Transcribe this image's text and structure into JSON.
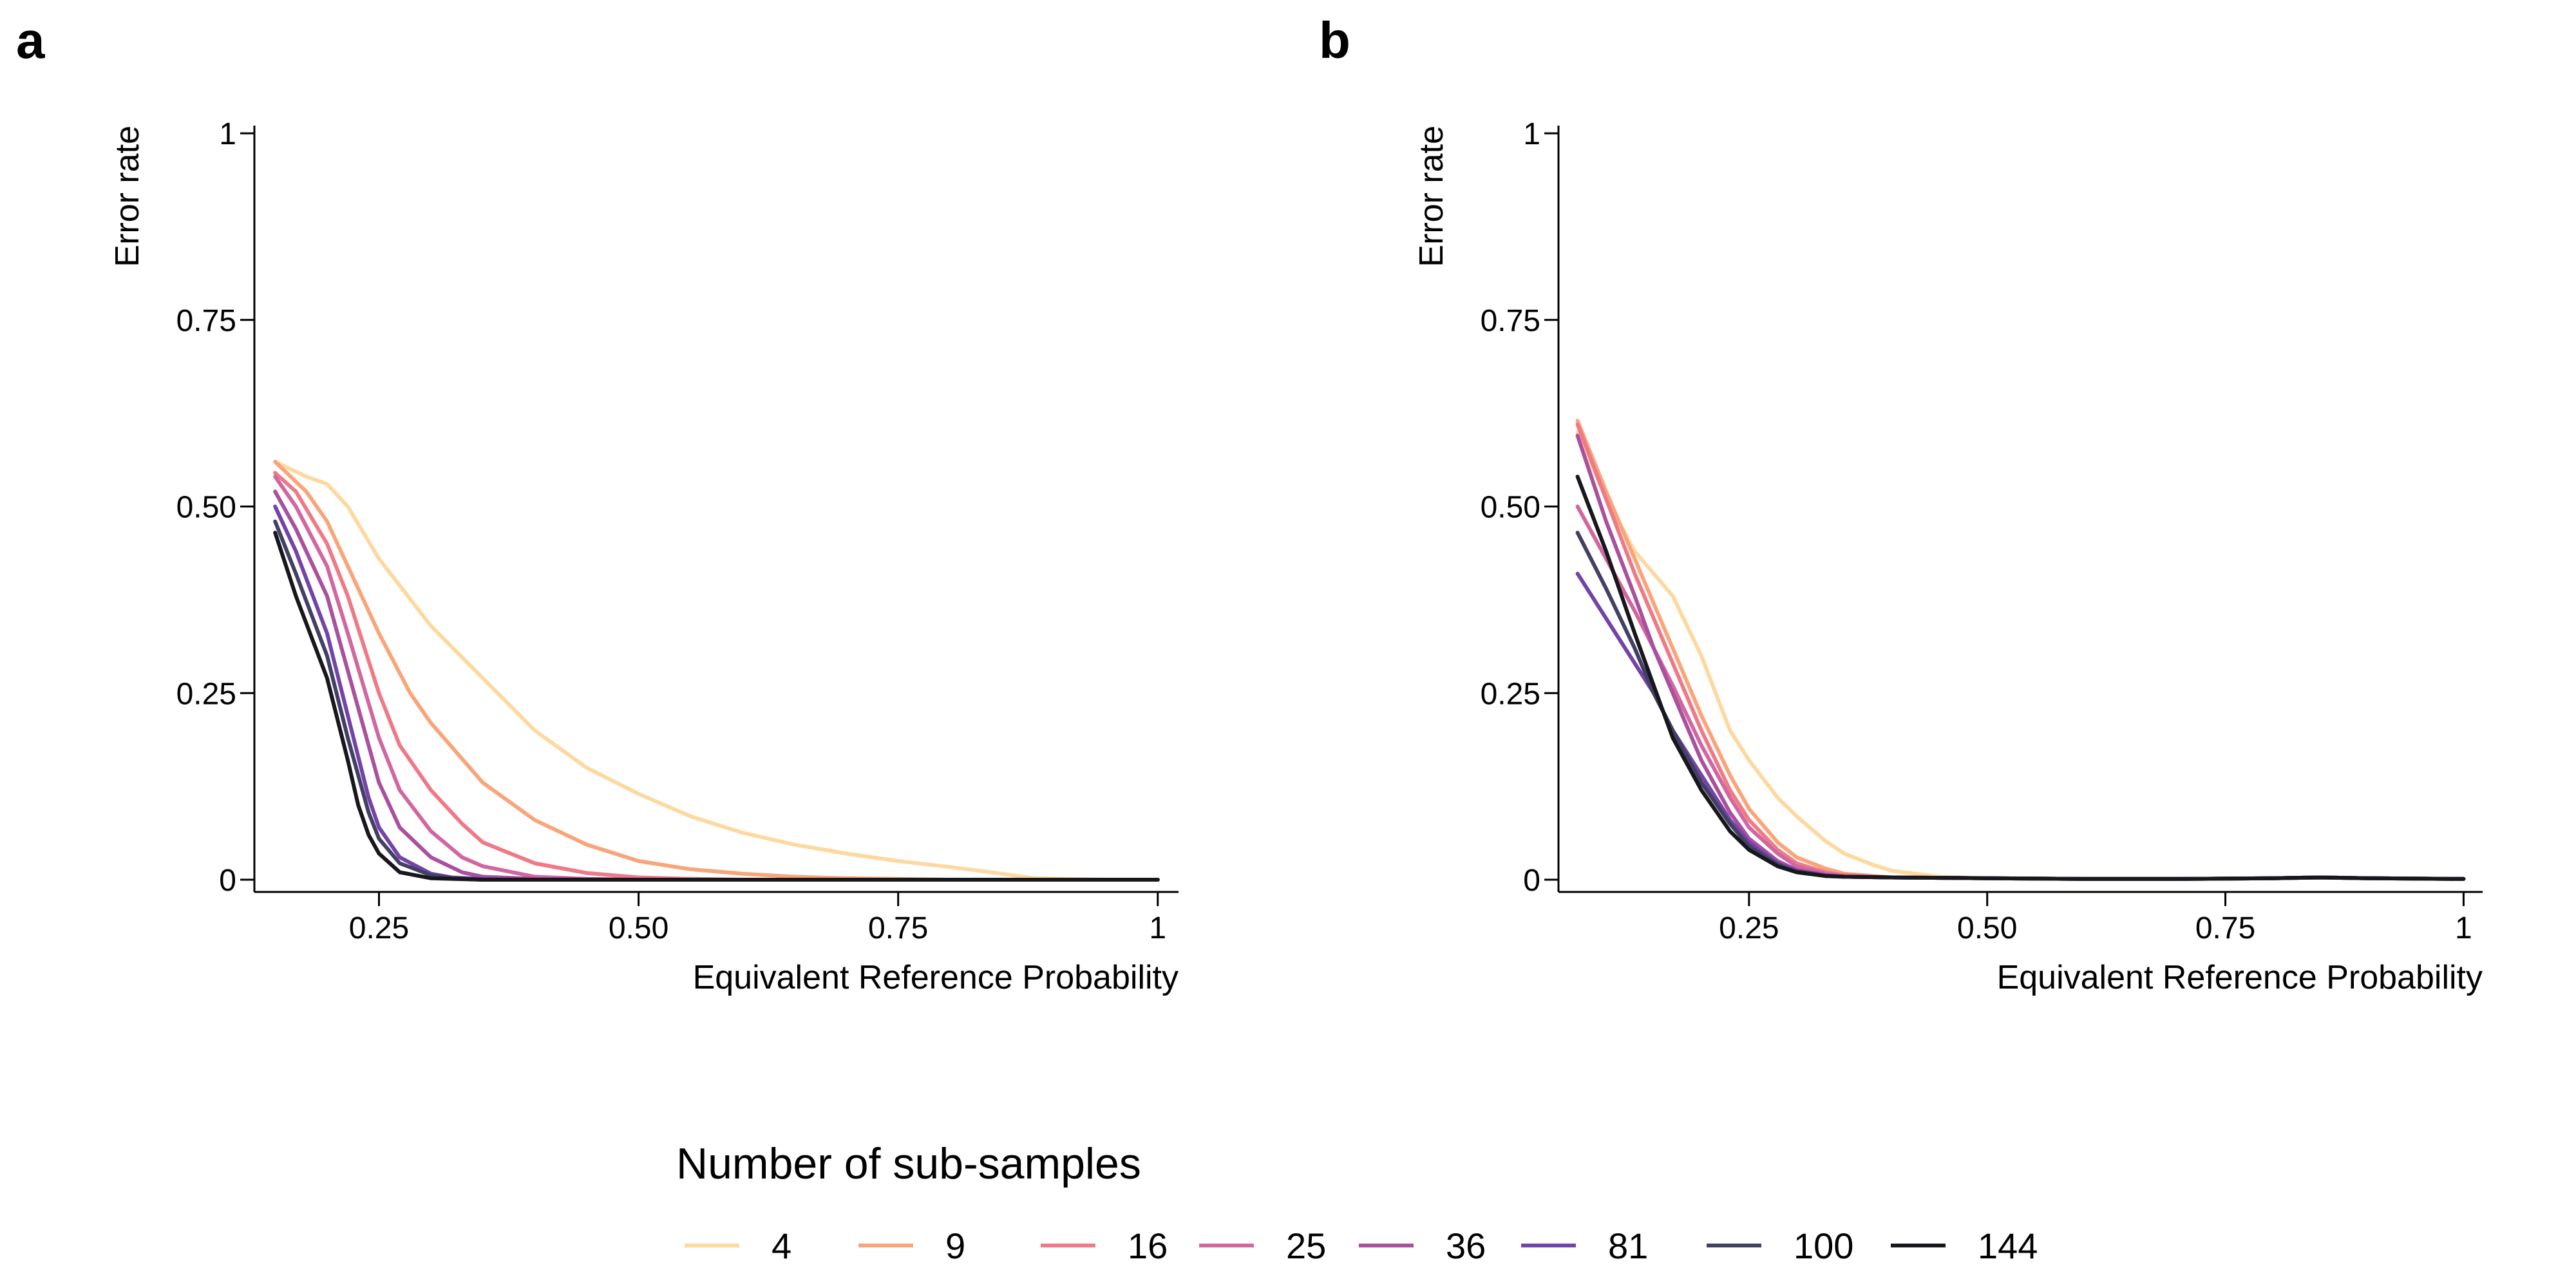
{
  "legend": {
    "title": "Number of sub-samples",
    "entries": [
      {
        "label": "4",
        "color": "#FDD9A0"
      },
      {
        "label": "9",
        "color": "#F9A57A"
      },
      {
        "label": "16",
        "color": "#EE7A87"
      },
      {
        "label": "25",
        "color": "#D267A0"
      },
      {
        "label": "36",
        "color": "#A9509E"
      },
      {
        "label": "81",
        "color": "#7443A8"
      },
      {
        "label": "100",
        "color": "#434065"
      },
      {
        "label": "144",
        "color": "#17171C"
      }
    ]
  },
  "chart_data": [
    {
      "panel": "a",
      "type": "line",
      "xlabel": "Equivalent Reference Probability",
      "ylabel": "Error rate",
      "xlim": [
        0.13,
        1.02
      ],
      "ylim": [
        0,
        1.03
      ],
      "xticks": [
        0.25,
        0.5,
        0.75,
        1
      ],
      "xtick_labels": [
        "0.25",
        "0.50",
        "0.75",
        "1"
      ],
      "yticks": [
        0,
        0.25,
        0.5,
        0.75,
        1
      ],
      "ytick_labels": [
        "0",
        "0.25",
        "0.50",
        "0.75",
        "1"
      ],
      "series": [
        {
          "name": "4",
          "x": [
            0.15,
            0.18,
            0.2,
            0.22,
            0.25,
            0.3,
            0.35,
            0.4,
            0.45,
            0.5,
            0.55,
            0.6,
            0.65,
            0.7,
            0.75,
            0.8,
            0.85,
            0.88,
            0.95,
            1.0
          ],
          "y": [
            0.56,
            0.54,
            0.53,
            0.5,
            0.43,
            0.34,
            0.27,
            0.2,
            0.15,
            0.115,
            0.085,
            0.063,
            0.047,
            0.035,
            0.025,
            0.017,
            0.008,
            0.002,
            0,
            0
          ]
        },
        {
          "name": "9",
          "x": [
            0.15,
            0.18,
            0.2,
            0.22,
            0.25,
            0.28,
            0.3,
            0.35,
            0.4,
            0.45,
            0.5,
            0.55,
            0.6,
            0.65,
            0.7,
            0.8,
            0.9,
            1.0
          ],
          "y": [
            0.56,
            0.52,
            0.48,
            0.42,
            0.33,
            0.25,
            0.21,
            0.13,
            0.08,
            0.047,
            0.025,
            0.014,
            0.008,
            0.004,
            0.002,
            0,
            0,
            0
          ]
        },
        {
          "name": "16",
          "x": [
            0.15,
            0.17,
            0.2,
            0.22,
            0.25,
            0.27,
            0.3,
            0.33,
            0.35,
            0.4,
            0.45,
            0.5,
            0.55,
            0.6,
            0.7,
            0.8,
            1.0
          ],
          "y": [
            0.545,
            0.52,
            0.45,
            0.38,
            0.25,
            0.18,
            0.12,
            0.075,
            0.05,
            0.022,
            0.009,
            0.003,
            0.001,
            0,
            0,
            0,
            0
          ]
        },
        {
          "name": "25",
          "x": [
            0.15,
            0.17,
            0.2,
            0.22,
            0.25,
            0.27,
            0.3,
            0.33,
            0.35,
            0.4,
            0.45,
            0.5,
            0.6,
            0.8,
            1.0
          ],
          "y": [
            0.54,
            0.5,
            0.42,
            0.33,
            0.19,
            0.12,
            0.065,
            0.03,
            0.018,
            0.004,
            0.001,
            0,
            0,
            0,
            0
          ]
        },
        {
          "name": "36",
          "x": [
            0.15,
            0.17,
            0.2,
            0.22,
            0.25,
            0.27,
            0.3,
            0.33,
            0.35,
            0.4,
            0.5,
            0.7,
            1.0
          ],
          "y": [
            0.52,
            0.47,
            0.38,
            0.28,
            0.13,
            0.07,
            0.03,
            0.01,
            0.004,
            0.001,
            0,
            0,
            0
          ]
        },
        {
          "name": "81",
          "x": [
            0.15,
            0.17,
            0.2,
            0.22,
            0.24,
            0.25,
            0.27,
            0.3,
            0.32,
            0.35,
            0.4,
            0.5,
            0.7,
            1.0
          ],
          "y": [
            0.5,
            0.44,
            0.33,
            0.22,
            0.11,
            0.07,
            0.03,
            0.008,
            0.003,
            0.001,
            0,
            0,
            0,
            0
          ]
        },
        {
          "name": "100",
          "x": [
            0.15,
            0.17,
            0.2,
            0.22,
            0.24,
            0.25,
            0.27,
            0.3,
            0.32,
            0.35,
            0.4,
            0.5,
            0.7,
            1.0
          ],
          "y": [
            0.48,
            0.41,
            0.3,
            0.19,
            0.09,
            0.055,
            0.022,
            0.006,
            0.002,
            0,
            0,
            0,
            0,
            0
          ]
        },
        {
          "name": "144",
          "x": [
            0.15,
            0.17,
            0.2,
            0.22,
            0.23,
            0.24,
            0.25,
            0.27,
            0.3,
            0.35,
            0.4,
            0.5,
            0.7,
            1.0
          ],
          "y": [
            0.465,
            0.38,
            0.27,
            0.16,
            0.1,
            0.06,
            0.035,
            0.01,
            0.002,
            0,
            0,
            0,
            0,
            0
          ]
        }
      ]
    },
    {
      "panel": "b",
      "type": "line",
      "xlabel": "Equivalent Reference Probability",
      "ylabel": "Error rate",
      "xlim": [
        0.05,
        1.02
      ],
      "ylim": [
        0,
        1.03
      ],
      "xticks": [
        0.25,
        0.5,
        0.75,
        1
      ],
      "xtick_labels": [
        "0.25",
        "0.50",
        "0.75",
        "1"
      ],
      "yticks": [
        0,
        0.25,
        0.5,
        0.75,
        1
      ],
      "ytick_labels": [
        "0",
        "0.25",
        "0.50",
        "0.75",
        "1"
      ],
      "series": [
        {
          "name": "4",
          "x": [
            0.07,
            0.1,
            0.13,
            0.15,
            0.17,
            0.2,
            0.23,
            0.25,
            0.28,
            0.3,
            0.33,
            0.35,
            0.38,
            0.4,
            0.45,
            0.5,
            0.6,
            0.7,
            0.8,
            0.85,
            0.9,
            1.0
          ],
          "y": [
            0.6,
            0.51,
            0.44,
            0.41,
            0.38,
            0.3,
            0.2,
            0.16,
            0.11,
            0.085,
            0.052,
            0.035,
            0.02,
            0.012,
            0.004,
            0.002,
            0.001,
            0.001,
            0.002,
            0.003,
            0.002,
            0.001
          ]
        },
        {
          "name": "9",
          "x": [
            0.07,
            0.1,
            0.13,
            0.15,
            0.17,
            0.2,
            0.23,
            0.25,
            0.28,
            0.3,
            0.33,
            0.35,
            0.4,
            0.5,
            0.6,
            0.7,
            0.8,
            0.85,
            0.9,
            1.0
          ],
          "y": [
            0.615,
            0.52,
            0.43,
            0.37,
            0.31,
            0.22,
            0.14,
            0.095,
            0.05,
            0.03,
            0.015,
            0.008,
            0.003,
            0.002,
            0.001,
            0.001,
            0.002,
            0.003,
            0.002,
            0.001
          ]
        },
        {
          "name": "16",
          "x": [
            0.07,
            0.1,
            0.13,
            0.15,
            0.17,
            0.2,
            0.23,
            0.25,
            0.28,
            0.3,
            0.33,
            0.35,
            0.4,
            0.5,
            0.6,
            0.7,
            0.8,
            0.85,
            0.9,
            1.0
          ],
          "y": [
            0.61,
            0.51,
            0.41,
            0.35,
            0.29,
            0.2,
            0.12,
            0.08,
            0.04,
            0.022,
            0.01,
            0.006,
            0.003,
            0.002,
            0.001,
            0.001,
            0.002,
            0.003,
            0.002,
            0.001
          ]
        },
        {
          "name": "25",
          "x": [
            0.07,
            0.1,
            0.13,
            0.15,
            0.17,
            0.2,
            0.23,
            0.25,
            0.28,
            0.3,
            0.33,
            0.35,
            0.4,
            0.5,
            0.6,
            0.7,
            0.8,
            0.85,
            0.9,
            1.0
          ],
          "y": [
            0.5,
            0.43,
            0.36,
            0.31,
            0.26,
            0.18,
            0.11,
            0.07,
            0.035,
            0.018,
            0.008,
            0.005,
            0.003,
            0.002,
            0.001,
            0.001,
            0.002,
            0.003,
            0.002,
            0.001
          ]
        },
        {
          "name": "36",
          "x": [
            0.07,
            0.1,
            0.13,
            0.15,
            0.17,
            0.2,
            0.23,
            0.25,
            0.28,
            0.3,
            0.33,
            0.35,
            0.4,
            0.5,
            0.6,
            0.7,
            0.8,
            0.85,
            0.9,
            1.0
          ],
          "y": [
            0.595,
            0.48,
            0.38,
            0.31,
            0.25,
            0.16,
            0.09,
            0.055,
            0.025,
            0.013,
            0.006,
            0.004,
            0.003,
            0.002,
            0.001,
            0.001,
            0.002,
            0.003,
            0.002,
            0.001
          ]
        },
        {
          "name": "81",
          "x": [
            0.07,
            0.1,
            0.13,
            0.15,
            0.17,
            0.2,
            0.23,
            0.25,
            0.28,
            0.3,
            0.33,
            0.35,
            0.4,
            0.5,
            0.6,
            0.7,
            0.8,
            0.85,
            0.9,
            1.0
          ],
          "y": [
            0.41,
            0.35,
            0.29,
            0.25,
            0.2,
            0.14,
            0.08,
            0.05,
            0.022,
            0.012,
            0.006,
            0.004,
            0.003,
            0.002,
            0.001,
            0.001,
            0.002,
            0.003,
            0.002,
            0.001
          ]
        },
        {
          "name": "100",
          "x": [
            0.07,
            0.1,
            0.13,
            0.15,
            0.17,
            0.2,
            0.23,
            0.25,
            0.28,
            0.3,
            0.33,
            0.35,
            0.4,
            0.5,
            0.6,
            0.7,
            0.8,
            0.85,
            0.9,
            1.0
          ],
          "y": [
            0.465,
            0.39,
            0.31,
            0.25,
            0.2,
            0.13,
            0.075,
            0.045,
            0.02,
            0.011,
            0.005,
            0.004,
            0.003,
            0.002,
            0.001,
            0.001,
            0.002,
            0.003,
            0.002,
            0.001
          ]
        },
        {
          "name": "144",
          "x": [
            0.07,
            0.1,
            0.13,
            0.15,
            0.17,
            0.2,
            0.23,
            0.25,
            0.28,
            0.3,
            0.33,
            0.35,
            0.4,
            0.5,
            0.6,
            0.7,
            0.8,
            0.85,
            0.9,
            1.0
          ],
          "y": [
            0.54,
            0.44,
            0.33,
            0.26,
            0.19,
            0.12,
            0.065,
            0.04,
            0.018,
            0.01,
            0.005,
            0.004,
            0.003,
            0.002,
            0.001,
            0.001,
            0.002,
            0.003,
            0.002,
            0.001
          ]
        }
      ]
    }
  ]
}
